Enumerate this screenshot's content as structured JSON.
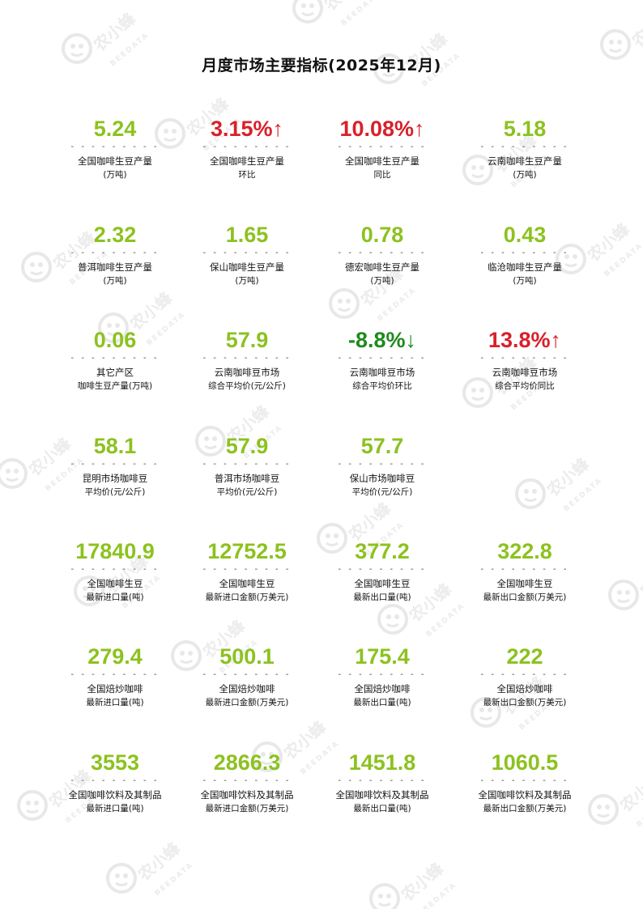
{
  "title": "月度市场主要指标(2025年12月)",
  "watermark": {
    "brand_cn": "农小蜂",
    "brand_en": "BEEDATA"
  },
  "colors": {
    "accent_green": "#8cc21f",
    "up_red": "#d9202a",
    "down_green": "#1f8a1f"
  },
  "dash": "- - - - - - - - -",
  "rows": [
    [
      {
        "value": "5.24",
        "l1": "全国咖啡生豆产量",
        "l2": "(万吨)",
        "color": "green"
      },
      {
        "value": "3.15%↑",
        "l1": "全国咖啡生豆产量",
        "l2": "环比",
        "color": "red"
      },
      {
        "value": "10.08%↑",
        "l1": "全国咖啡生豆产量",
        "l2": "同比",
        "color": "red"
      },
      {
        "value": "5.18",
        "l1": "云南咖啡生豆产量",
        "l2": "(万吨)",
        "color": "green"
      }
    ],
    [
      {
        "value": "2.32",
        "l1": "普洱咖啡生豆产量",
        "l2": "(万吨)",
        "color": "green"
      },
      {
        "value": "1.65",
        "l1": "保山咖啡生豆产量",
        "l2": "(万吨)",
        "color": "green"
      },
      {
        "value": "0.78",
        "l1": "德宏咖啡生豆产量",
        "l2": "(万吨)",
        "color": "green"
      },
      {
        "value": "0.43",
        "l1": "临沧咖啡生豆产量",
        "l2": "(万吨)",
        "color": "green"
      }
    ],
    [
      {
        "value": "0.06",
        "l1": "其它产区",
        "l2": "咖啡生豆产量(万吨)",
        "color": "green"
      },
      {
        "value": "57.9",
        "l1": "云南咖啡豆市场",
        "l2": "综合平均价(元/公斤)",
        "color": "green"
      },
      {
        "value": "-8.8%↓",
        "l1": "云南咖啡豆市场",
        "l2": "综合平均价环比",
        "color": "dgreen"
      },
      {
        "value": "13.8%↑",
        "l1": "云南咖啡豆市场",
        "l2": "综合平均价同比",
        "color": "red"
      }
    ],
    [
      {
        "value": "58.1",
        "l1": "昆明市场咖啡豆",
        "l2": "平均价(元/公斤)",
        "color": "green"
      },
      {
        "value": "57.9",
        "l1": "普洱市场咖啡豆",
        "l2": "平均价(元/公斤)",
        "color": "green"
      },
      {
        "value": "57.7",
        "l1": "保山市场咖啡豆",
        "l2": "平均价(元/公斤)",
        "color": "green"
      }
    ],
    [
      {
        "value": "17840.9",
        "l1": "全国咖啡生豆",
        "l2": "最新进口量(吨)",
        "color": "green"
      },
      {
        "value": "12752.5",
        "l1": "全国咖啡生豆",
        "l2": "最新进口金额(万美元)",
        "color": "green"
      },
      {
        "value": "377.2",
        "l1": "全国咖啡生豆",
        "l2": "最新出口量(吨)",
        "color": "green"
      },
      {
        "value": "322.8",
        "l1": "全国咖啡生豆",
        "l2": "最新出口金额(万美元)",
        "color": "green"
      }
    ],
    [
      {
        "value": "279.4",
        "l1": "全国焙炒咖啡",
        "l2": "最新进口量(吨)",
        "color": "green"
      },
      {
        "value": "500.1",
        "l1": "全国焙炒咖啡",
        "l2": "最新进口金额(万美元)",
        "color": "green"
      },
      {
        "value": "175.4",
        "l1": "全国焙炒咖啡",
        "l2": "最新出口量(吨)",
        "color": "green"
      },
      {
        "value": "222",
        "l1": "全国焙炒咖啡",
        "l2": "最新出口金额(万美元)",
        "color": "green"
      }
    ],
    [
      {
        "value": "3553",
        "l1": "全国咖啡饮料及其制品",
        "l2": "最新进口量(吨)",
        "color": "green"
      },
      {
        "value": "2866.3",
        "l1": "全国咖啡饮料及其制品",
        "l2": "最新进口金额(万美元)",
        "color": "green"
      },
      {
        "value": "1451.8",
        "l1": "全国咖啡饮料及其制品",
        "l2": "最新出口量(吨)",
        "color": "green"
      },
      {
        "value": "1060.5",
        "l1": "全国咖啡饮料及其制品",
        "l2": "最新出口金额(万美元)",
        "color": "green"
      }
    ]
  ]
}
